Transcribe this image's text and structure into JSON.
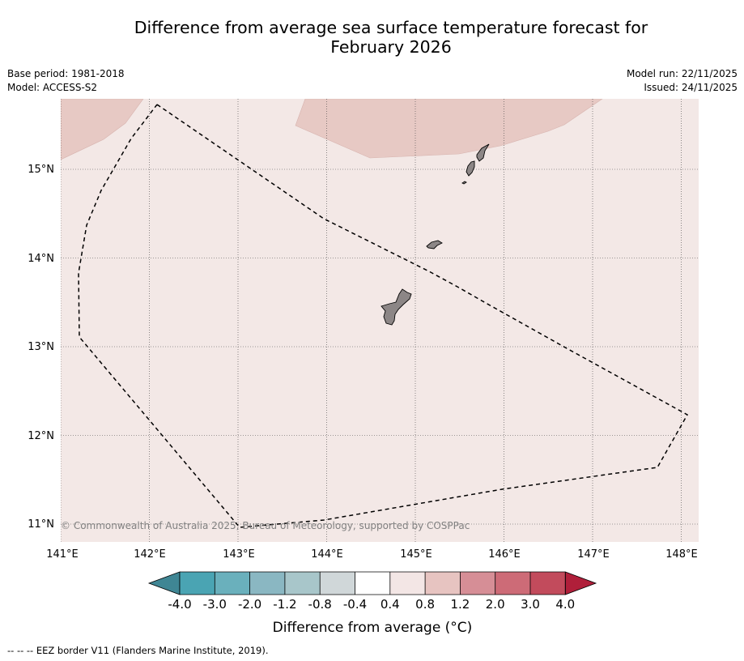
{
  "title_line1": "Difference from average sea surface temperature forecast for",
  "title_line2": "February 2026",
  "info": {
    "base_period": "Base period: 1981-2018",
    "model": "Model: ACCESS-S2",
    "model_run": "Model run: 22/11/2025",
    "issued": "Issued: 24/11/2025"
  },
  "map": {
    "longitude_labels": [
      "141°E",
      "142°E",
      "143°E",
      "144°E",
      "145°E",
      "146°E",
      "147°E",
      "148°E"
    ],
    "latitude_labels": [
      "15°N",
      "14°N",
      "13°N",
      "12°N",
      "11°N"
    ],
    "copyright": "© Commonwealth of Australia 2025, Bureau of Meteorology, supported by COSPPac",
    "colors": {
      "background_anomaly": "#f3e8e6",
      "warm_anomaly": "#e7c9c4",
      "land": "#8c8686",
      "eez_line": "#000000"
    }
  },
  "colorbar": {
    "labels": [
      "-4.0",
      "-3.0",
      "-2.0",
      "-1.2",
      "-0.8",
      "-0.4",
      "0.4",
      "0.8",
      "1.2",
      "2.0",
      "3.0",
      "4.0"
    ],
    "colors": [
      "#4aa4b3",
      "#6ab0bc",
      "#8ab7c2",
      "#a8c6ca",
      "#d0d7d9",
      "#ffffff",
      "#f3e6e5",
      "#e7c4c1",
      "#d68e96",
      "#cd6b77",
      "#c24b5c"
    ],
    "under_color": "#3f8694",
    "over_color": "#b01f3a",
    "title": "Difference from average (°C)"
  },
  "legend_note": "--  --  -- EEZ border V11 (Flanders Marine Institute, 2019)."
}
